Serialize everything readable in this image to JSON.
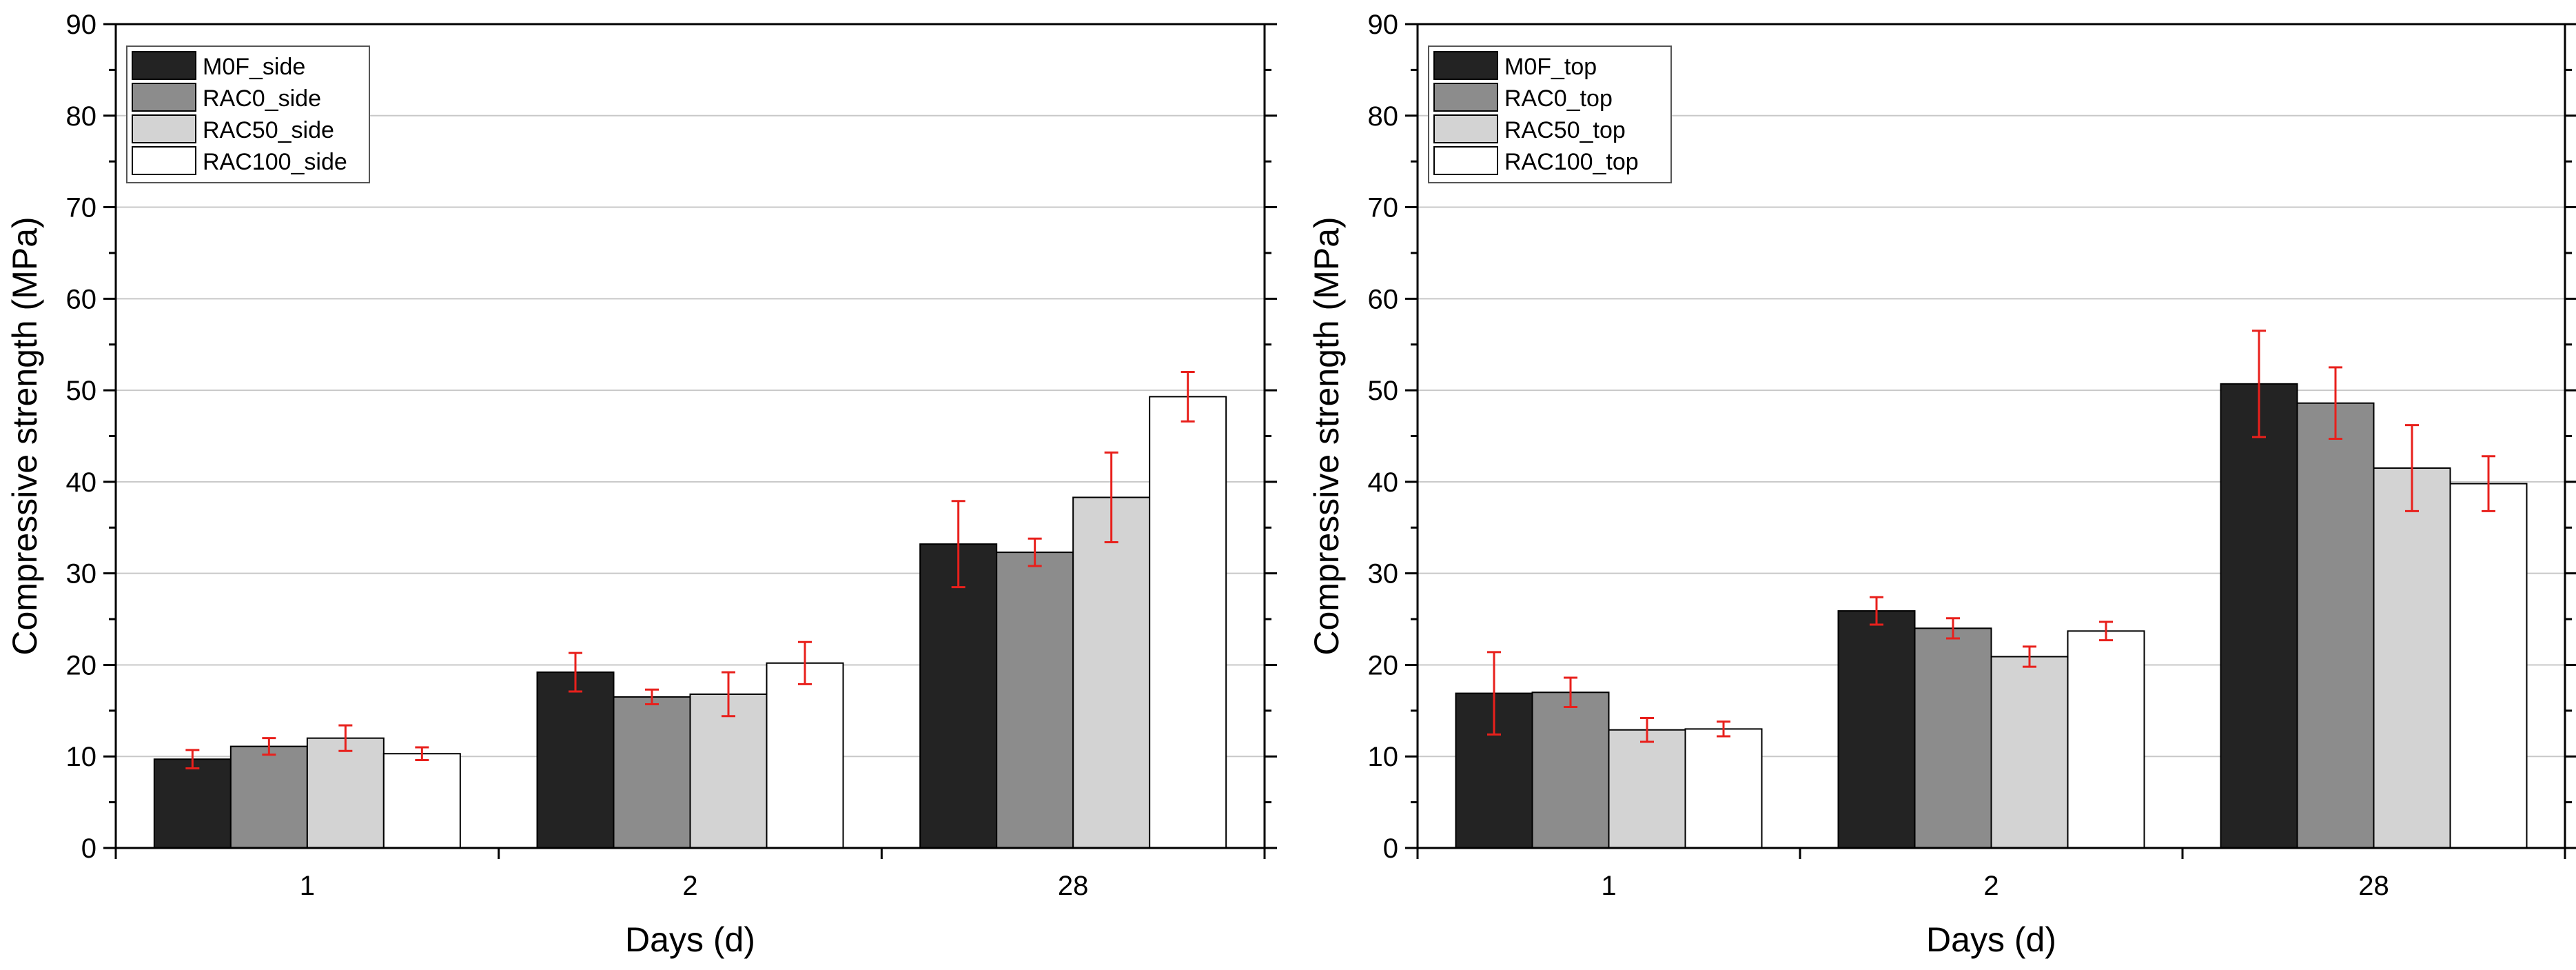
{
  "chart_data": [
    {
      "type": "bar",
      "title": "",
      "xlabel": "Days (d)",
      "ylabel": "Compressive strength (MPa)",
      "ylim": [
        0,
        90
      ],
      "yticks": [
        0,
        10,
        20,
        30,
        40,
        50,
        60,
        70,
        80,
        90
      ],
      "grid": "horizontal",
      "legend_position": "top-left",
      "categories": [
        "1",
        "2",
        "28"
      ],
      "series": [
        {
          "name": "M0F_side",
          "color": "#232323",
          "values": [
            9.7,
            19.2,
            33.2
          ],
          "errors": [
            1.0,
            2.1,
            4.7
          ]
        },
        {
          "name": "RAC0_side",
          "color": "#8c8c8c",
          "values": [
            11.1,
            16.5,
            32.3
          ],
          "errors": [
            0.9,
            0.8,
            1.5
          ]
        },
        {
          "name": "RAC50_side",
          "color": "#d3d3d3",
          "values": [
            12.0,
            16.8,
            38.3
          ],
          "errors": [
            1.4,
            2.4,
            4.9
          ]
        },
        {
          "name": "RAC100_side",
          "color": "#ffffff",
          "values": [
            10.3,
            20.2,
            49.3
          ],
          "errors": [
            0.7,
            2.3,
            2.7
          ]
        }
      ]
    },
    {
      "type": "bar",
      "title": "",
      "xlabel": "Days (d)",
      "ylabel": "Compressive strength (MPa)",
      "ylim": [
        0,
        90
      ],
      "yticks": [
        0,
        10,
        20,
        30,
        40,
        50,
        60,
        70,
        80,
        90
      ],
      "grid": "horizontal",
      "legend_position": "top-left",
      "categories": [
        "1",
        "2",
        "28"
      ],
      "series": [
        {
          "name": "M0F_top",
          "color": "#232323",
          "values": [
            16.9,
            25.9,
            50.7
          ],
          "errors": [
            4.5,
            1.5,
            5.8
          ]
        },
        {
          "name": "RAC0_top",
          "color": "#8c8c8c",
          "values": [
            17.0,
            24.0,
            48.6
          ],
          "errors": [
            1.6,
            1.1,
            3.9
          ]
        },
        {
          "name": "RAC50_top",
          "color": "#d3d3d3",
          "values": [
            12.9,
            20.9,
            41.5
          ],
          "errors": [
            1.3,
            1.1,
            4.7
          ]
        },
        {
          "name": "RAC100_top",
          "color": "#ffffff",
          "values": [
            13.0,
            23.7,
            39.8
          ],
          "errors": [
            0.8,
            1.0,
            3.0
          ]
        }
      ]
    }
  ]
}
